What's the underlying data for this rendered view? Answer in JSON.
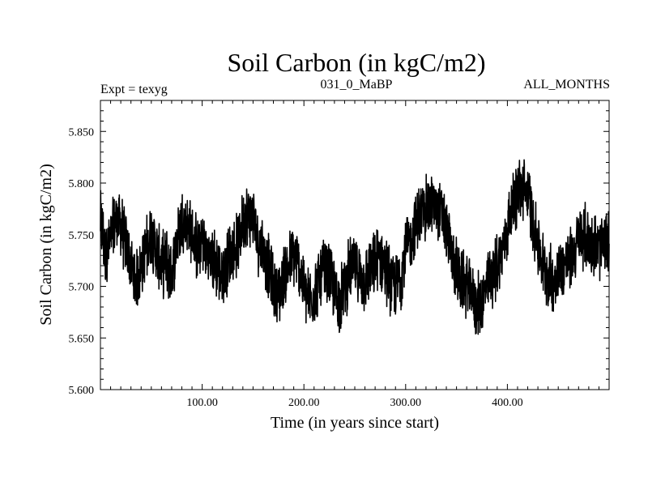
{
  "chart_data": {
    "type": "line",
    "title": "Soil Carbon (in kgC/m2)",
    "subtitle_left": "Expt = texyg",
    "subtitle_center": "031_0_MaBP",
    "subtitle_right": "ALL_MONTHS",
    "xlabel": "Time (in years since start)",
    "ylabel": "Soil Carbon (in kgC/m2)",
    "xlim": [
      0,
      500
    ],
    "ylim": [
      5.6,
      5.88
    ],
    "x_tick_labels": [
      "100.00",
      "200.00",
      "300.00",
      "400.00"
    ],
    "x_ticks": [
      100,
      200,
      300,
      400
    ],
    "y_tick_labels": [
      "5.600",
      "5.650",
      "5.700",
      "5.750",
      "5.800",
      "5.850"
    ],
    "y_ticks": [
      5.6,
      5.65,
      5.7,
      5.75,
      5.8,
      5.85
    ],
    "grid": false,
    "line_color": "#000000",
    "series": [
      {
        "x": [
          0,
          5,
          10,
          15,
          20,
          25,
          30,
          35,
          40,
          45,
          50,
          55,
          60,
          65,
          70,
          75,
          80,
          85,
          90,
          95,
          100,
          105,
          110,
          115,
          120,
          125,
          130,
          135,
          140,
          145,
          150,
          155,
          160,
          165,
          170,
          175,
          180,
          185,
          190,
          195,
          200,
          205,
          210,
          215,
          220,
          225,
          230,
          235,
          240,
          245,
          250,
          255,
          260,
          265,
          270,
          275,
          280,
          285,
          290,
          295,
          300,
          305,
          310,
          315,
          320,
          325,
          330,
          335,
          340,
          345,
          350,
          355,
          360,
          365,
          370,
          375,
          380,
          385,
          390,
          395,
          400,
          405,
          410,
          415,
          420,
          425,
          430,
          435,
          440,
          445,
          450,
          455,
          460,
          465,
          470,
          475,
          480,
          485,
          490,
          495,
          500
        ],
        "y": [
          5.765,
          5.73,
          5.745,
          5.765,
          5.76,
          5.74,
          5.72,
          5.705,
          5.72,
          5.735,
          5.75,
          5.735,
          5.72,
          5.725,
          5.71,
          5.745,
          5.765,
          5.76,
          5.75,
          5.735,
          5.745,
          5.73,
          5.725,
          5.72,
          5.71,
          5.725,
          5.735,
          5.74,
          5.765,
          5.77,
          5.765,
          5.745,
          5.735,
          5.72,
          5.7,
          5.69,
          5.71,
          5.72,
          5.73,
          5.72,
          5.7,
          5.685,
          5.695,
          5.705,
          5.715,
          5.71,
          5.695,
          5.685,
          5.7,
          5.715,
          5.72,
          5.71,
          5.705,
          5.715,
          5.72,
          5.73,
          5.72,
          5.705,
          5.7,
          5.71,
          5.735,
          5.745,
          5.76,
          5.77,
          5.775,
          5.78,
          5.775,
          5.77,
          5.755,
          5.73,
          5.715,
          5.705,
          5.7,
          5.695,
          5.68,
          5.685,
          5.7,
          5.71,
          5.72,
          5.735,
          5.755,
          5.78,
          5.79,
          5.795,
          5.79,
          5.765,
          5.74,
          5.72,
          5.71,
          5.705,
          5.715,
          5.72,
          5.725,
          5.73,
          5.745,
          5.75,
          5.745,
          5.74,
          5.735,
          5.74,
          5.74
        ]
      }
    ]
  }
}
